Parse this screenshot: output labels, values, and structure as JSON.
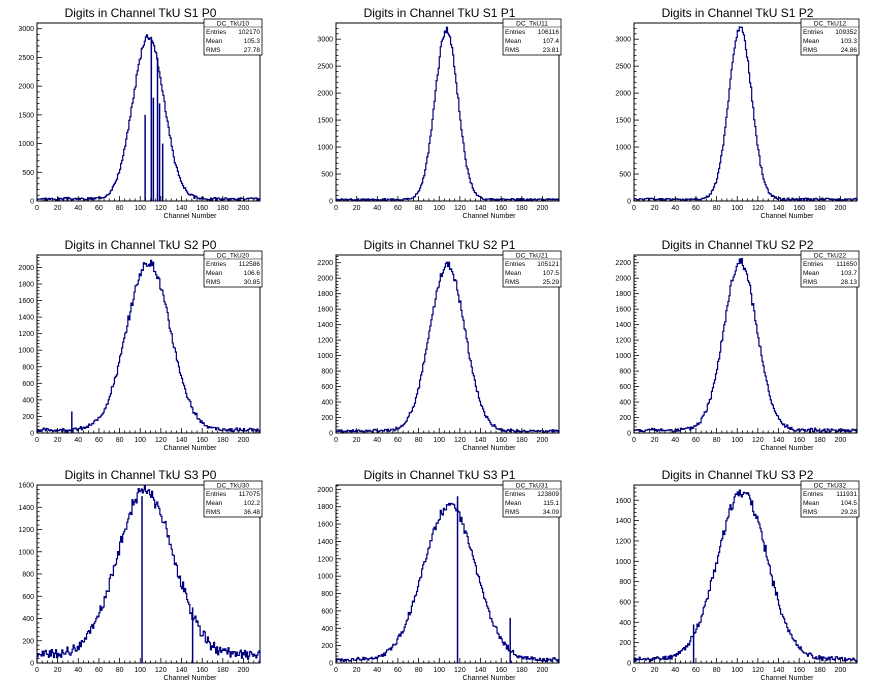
{
  "chart_data": [
    {
      "type": "histogram",
      "title": "Digits in Channel TkU S1 P0",
      "xlabel": "Channel Number",
      "ylabel": "",
      "xlim": [
        0,
        216
      ],
      "ylim": [
        0,
        3100
      ],
      "xticks": [
        0,
        20,
        40,
        60,
        80,
        100,
        120,
        140,
        160,
        180,
        200
      ],
      "yticks": [
        0,
        500,
        1000,
        1500,
        2000,
        2500,
        3000
      ],
      "stats": {
        "name": "DC_TkU10",
        "rows": [
          [
            "Entries",
            "102170"
          ],
          [
            "Mean",
            "105.3"
          ],
          [
            "RMS",
            "27.78"
          ]
        ]
      },
      "shape": {
        "peak_x": 108,
        "peak_y": 2850,
        "sigma": 15,
        "baseline": 40
      },
      "spikes": [
        {
          "x": 104,
          "y": 1500
        },
        {
          "x": 110,
          "y": 2860
        },
        {
          "x": 112,
          "y": 1800
        },
        {
          "x": 116,
          "y": 2500
        },
        {
          "x": 118,
          "y": 1700
        },
        {
          "x": 121,
          "y": 1000
        }
      ]
    },
    {
      "type": "histogram",
      "title": "Digits in Channel TkU S1 P1",
      "xlabel": "Channel Number",
      "ylabel": "",
      "xlim": [
        0,
        216
      ],
      "ylim": [
        0,
        3300
      ],
      "xticks": [
        0,
        20,
        40,
        60,
        80,
        100,
        120,
        140,
        160,
        180,
        200
      ],
      "yticks": [
        0,
        500,
        1000,
        1500,
        2000,
        2500,
        3000
      ],
      "stats": {
        "name": "DC_TkU11",
        "rows": [
          [
            "Entries",
            "106116"
          ],
          [
            "Mean",
            "107.4"
          ],
          [
            "RMS",
            "23.81"
          ]
        ]
      },
      "shape": {
        "peak_x": 107,
        "peak_y": 3150,
        "sigma": 11,
        "baseline": 30
      },
      "spikes": []
    },
    {
      "type": "histogram",
      "title": "Digits in Channel TkU S1 P2",
      "xlabel": "Channel Number",
      "ylabel": "",
      "xlim": [
        0,
        216
      ],
      "ylim": [
        0,
        3300
      ],
      "xticks": [
        0,
        20,
        40,
        60,
        80,
        100,
        120,
        140,
        160,
        180,
        200
      ],
      "yticks": [
        0,
        500,
        1000,
        1500,
        2000,
        2500,
        3000
      ],
      "stats": {
        "name": "DC_TkU12",
        "rows": [
          [
            "Entries",
            "109352"
          ],
          [
            "Mean",
            "103.3"
          ],
          [
            "RMS",
            "24.86"
          ]
        ]
      },
      "shape": {
        "peak_x": 103,
        "peak_y": 3180,
        "sigma": 11,
        "baseline": 35
      },
      "spikes": []
    },
    {
      "type": "histogram",
      "title": "Digits in Channel TkU S2 P0",
      "xlabel": "Channel Number",
      "ylabel": "",
      "xlim": [
        0,
        216
      ],
      "ylim": [
        0,
        2150
      ],
      "xticks": [
        0,
        20,
        40,
        60,
        80,
        100,
        120,
        140,
        160,
        180,
        200
      ],
      "yticks": [
        0,
        200,
        400,
        600,
        800,
        1000,
        1200,
        1400,
        1600,
        1800,
        2000
      ],
      "stats": {
        "name": "DC_TkU20",
        "rows": [
          [
            "Entries",
            "112586"
          ],
          [
            "Mean",
            "106.6"
          ],
          [
            "RMS",
            "30.85"
          ]
        ]
      },
      "shape": {
        "peak_x": 108,
        "peak_y": 2030,
        "sigma": 21,
        "baseline": 40
      },
      "spikes": [
        {
          "x": 33,
          "y": 260
        }
      ]
    },
    {
      "type": "histogram",
      "title": "Digits in Channel TkU S2 P1",
      "xlabel": "Channel Number",
      "ylabel": "",
      "xlim": [
        0,
        216
      ],
      "ylim": [
        0,
        2300
      ],
      "xticks": [
        0,
        20,
        40,
        60,
        80,
        100,
        120,
        140,
        160,
        180,
        200
      ],
      "yticks": [
        0,
        200,
        400,
        600,
        800,
        1000,
        1200,
        1400,
        1600,
        1800,
        2000,
        2200
      ],
      "stats": {
        "name": "DC_TkU21",
        "rows": [
          [
            "Entries",
            "105121"
          ],
          [
            "Mean",
            "107.5"
          ],
          [
            "RMS",
            "25.29"
          ]
        ]
      },
      "shape": {
        "peak_x": 108,
        "peak_y": 2150,
        "sigma": 17,
        "baseline": 30
      },
      "spikes": []
    },
    {
      "type": "histogram",
      "title": "Digits in Channel TkU S2 P2",
      "xlabel": "Channel Number",
      "ylabel": "",
      "xlim": [
        0,
        216
      ],
      "ylim": [
        0,
        2300
      ],
      "xticks": [
        0,
        20,
        40,
        60,
        80,
        100,
        120,
        140,
        160,
        180,
        200
      ],
      "yticks": [
        0,
        200,
        400,
        600,
        800,
        1000,
        1200,
        1400,
        1600,
        1800,
        2000,
        2200
      ],
      "stats": {
        "name": "DC_TkU22",
        "rows": [
          [
            "Entries",
            "111650"
          ],
          [
            "Mean",
            "103.7"
          ],
          [
            "RMS",
            "28.13"
          ]
        ]
      },
      "shape": {
        "peak_x": 103,
        "peak_y": 2170,
        "sigma": 16,
        "baseline": 40
      },
      "spikes": []
    },
    {
      "type": "histogram",
      "title": "Digits in Channel TkU S3 P0",
      "xlabel": "Channel Number",
      "ylabel": "",
      "xlim": [
        0,
        216
      ],
      "ylim": [
        0,
        1600
      ],
      "xticks": [
        0,
        20,
        40,
        60,
        80,
        100,
        120,
        140,
        160,
        180,
        200
      ],
      "yticks": [
        0,
        200,
        400,
        600,
        800,
        1000,
        1200,
        1400,
        1600
      ],
      "stats": {
        "name": "DC_TkU30",
        "rows": [
          [
            "Entries",
            "117075"
          ],
          [
            "Mean",
            "102.2"
          ],
          [
            "RMS",
            "36.48"
          ]
        ]
      },
      "shape": {
        "peak_x": 105,
        "peak_y": 1480,
        "sigma": 27,
        "baseline": 80
      },
      "spikes": [
        {
          "x": 101,
          "y": 1500
        },
        {
          "x": 150,
          "y": 500
        }
      ]
    },
    {
      "type": "histogram",
      "title": "Digits in Channel TkU S3 P1",
      "xlabel": "Channel Number",
      "ylabel": "",
      "xlim": [
        0,
        216
      ],
      "ylim": [
        0,
        2050
      ],
      "xticks": [
        0,
        20,
        40,
        60,
        80,
        100,
        120,
        140,
        160,
        180,
        200
      ],
      "yticks": [
        0,
        200,
        400,
        600,
        800,
        1000,
        1200,
        1400,
        1600,
        1800,
        2000
      ],
      "stats": {
        "name": "DC_TkU31",
        "rows": [
          [
            "Entries",
            "123809"
          ],
          [
            "Mean",
            "115.1"
          ],
          [
            "RMS",
            "34.09"
          ]
        ]
      },
      "shape": {
        "peak_x": 110,
        "peak_y": 1780,
        "sigma": 25,
        "baseline": 40
      },
      "spikes": [
        {
          "x": 117,
          "y": 1920
        },
        {
          "x": 168,
          "y": 520
        }
      ]
    },
    {
      "type": "histogram",
      "title": "Digits in Channel TkU S3 P2",
      "xlabel": "Channel Number",
      "ylabel": "",
      "xlim": [
        0,
        216
      ],
      "ylim": [
        0,
        1750
      ],
      "xticks": [
        0,
        20,
        40,
        60,
        80,
        100,
        120,
        140,
        160,
        180,
        200
      ],
      "yticks": [
        0,
        200,
        400,
        600,
        800,
        1000,
        1200,
        1400,
        1600
      ],
      "stats": {
        "name": "DC_TkU32",
        "rows": [
          [
            "Entries",
            "111931"
          ],
          [
            "Mean",
            "104.5"
          ],
          [
            "RMS",
            "29.28"
          ]
        ]
      },
      "shape": {
        "peak_x": 105,
        "peak_y": 1650,
        "sigma": 24,
        "baseline": 40
      },
      "spikes": [
        {
          "x": 57,
          "y": 380
        }
      ]
    }
  ]
}
